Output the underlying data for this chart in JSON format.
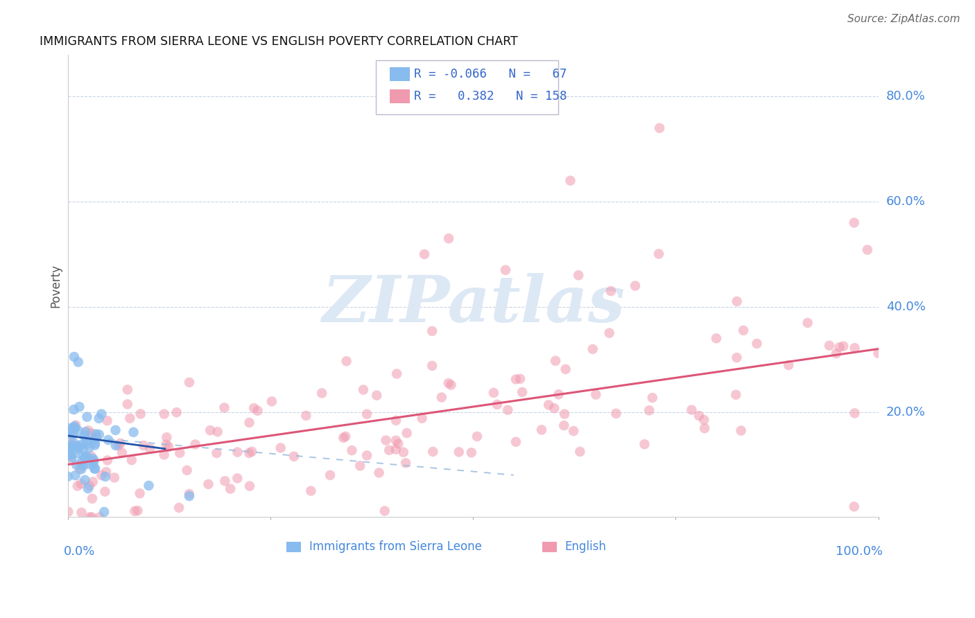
{
  "title": "IMMIGRANTS FROM SIERRA LEONE VS ENGLISH POVERTY CORRELATION CHART",
  "source": "Source: ZipAtlas.com",
  "ylabel": "Poverty",
  "y_tick_labels": [
    "20.0%",
    "40.0%",
    "60.0%",
    "80.0%"
  ],
  "y_tick_values": [
    0.2,
    0.4,
    0.6,
    0.8
  ],
  "blue_color": "#88bbee",
  "pink_color": "#f09ab0",
  "blue_line_color": "#2255aa",
  "pink_line_color": "#dd5577",
  "blue_dash_color": "#99bbdd",
  "watermark": "ZIPatlas",
  "watermark_color": "#dde8f5",
  "background_color": "#ffffff",
  "grid_color": "#c8d4e4",
  "xlim": [
    0.0,
    1.0
  ],
  "ylim": [
    0.0,
    0.88
  ],
  "blue_slope": -0.066,
  "blue_intercept": 0.135,
  "pink_slope": 0.22,
  "pink_intercept": 0.085
}
